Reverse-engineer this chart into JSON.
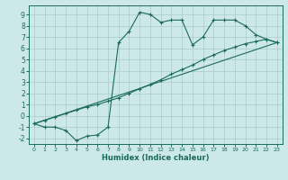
{
  "xlabel": "Humidex (Indice chaleur)",
  "bg_color": "#cce8e8",
  "line_color": "#1a6b5a",
  "grid_color": "#aacccc",
  "xlim": [
    -0.5,
    23.5
  ],
  "ylim": [
    -2.5,
    9.8
  ],
  "xticks": [
    0,
    1,
    2,
    3,
    4,
    5,
    6,
    7,
    8,
    9,
    10,
    11,
    12,
    13,
    14,
    15,
    16,
    17,
    18,
    19,
    20,
    21,
    22,
    23
  ],
  "yticks": [
    -2,
    -1,
    0,
    1,
    2,
    3,
    4,
    5,
    6,
    7,
    8,
    9
  ],
  "line1_x": [
    0,
    1,
    2,
    3,
    4,
    5,
    6,
    7,
    8,
    9,
    10,
    11,
    12,
    13,
    14,
    15,
    16,
    17,
    18,
    19,
    20,
    21,
    22,
    23
  ],
  "line1_y": [
    -0.7,
    -1.0,
    -1.0,
    -1.3,
    -2.2,
    -1.8,
    -1.7,
    -1.0,
    6.5,
    7.5,
    9.2,
    9.0,
    8.3,
    8.5,
    8.5,
    6.3,
    7.0,
    8.5,
    8.5,
    8.5,
    8.0,
    7.2,
    6.8,
    6.5
  ],
  "line2_x": [
    0,
    1,
    2,
    3,
    4,
    5,
    6,
    7,
    8,
    9,
    10,
    11,
    12,
    13,
    14,
    15,
    16,
    17,
    18,
    19,
    20,
    21,
    22,
    23
  ],
  "line2_y": [
    -0.7,
    -0.4,
    -0.1,
    0.2,
    0.5,
    0.8,
    1.0,
    1.3,
    1.6,
    2.0,
    2.4,
    2.8,
    3.2,
    3.7,
    4.1,
    4.5,
    5.0,
    5.4,
    5.8,
    6.1,
    6.4,
    6.6,
    6.8,
    6.5
  ],
  "line3_x": [
    0,
    23
  ],
  "line3_y": [
    -0.7,
    6.5
  ]
}
